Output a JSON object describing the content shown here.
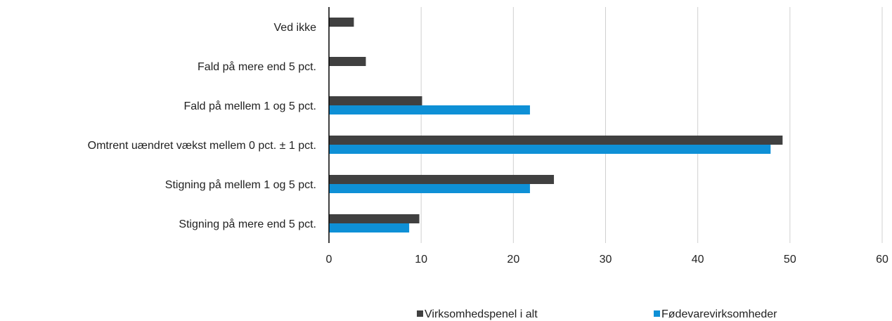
{
  "chart_data": {
    "type": "hbar",
    "categories": [
      "Ved ikke",
      "Fald på mere end 5 pct.",
      "Fald på mellem 1 og 5 pct.",
      "Omtrent uændret vækst mellem 0 pct. ± 1 pct.",
      "Stigning på mellem 1 og 5 pct.",
      "Stigning på mere end 5 pct."
    ],
    "series": [
      {
        "name": "Virksomhedspenel i alt",
        "color": "#404040",
        "values": [
          2.7,
          4.0,
          10.1,
          49.2,
          24.4,
          9.8
        ]
      },
      {
        "name": "Fødevarevirksomheder",
        "color": "#0e90d6",
        "values": [
          0,
          0,
          21.8,
          47.9,
          21.8,
          8.7
        ]
      }
    ],
    "xlim": [
      0,
      60
    ],
    "xticks": [
      0,
      10,
      20,
      30,
      40,
      50,
      60
    ],
    "grid": true,
    "legend": "bottom"
  }
}
